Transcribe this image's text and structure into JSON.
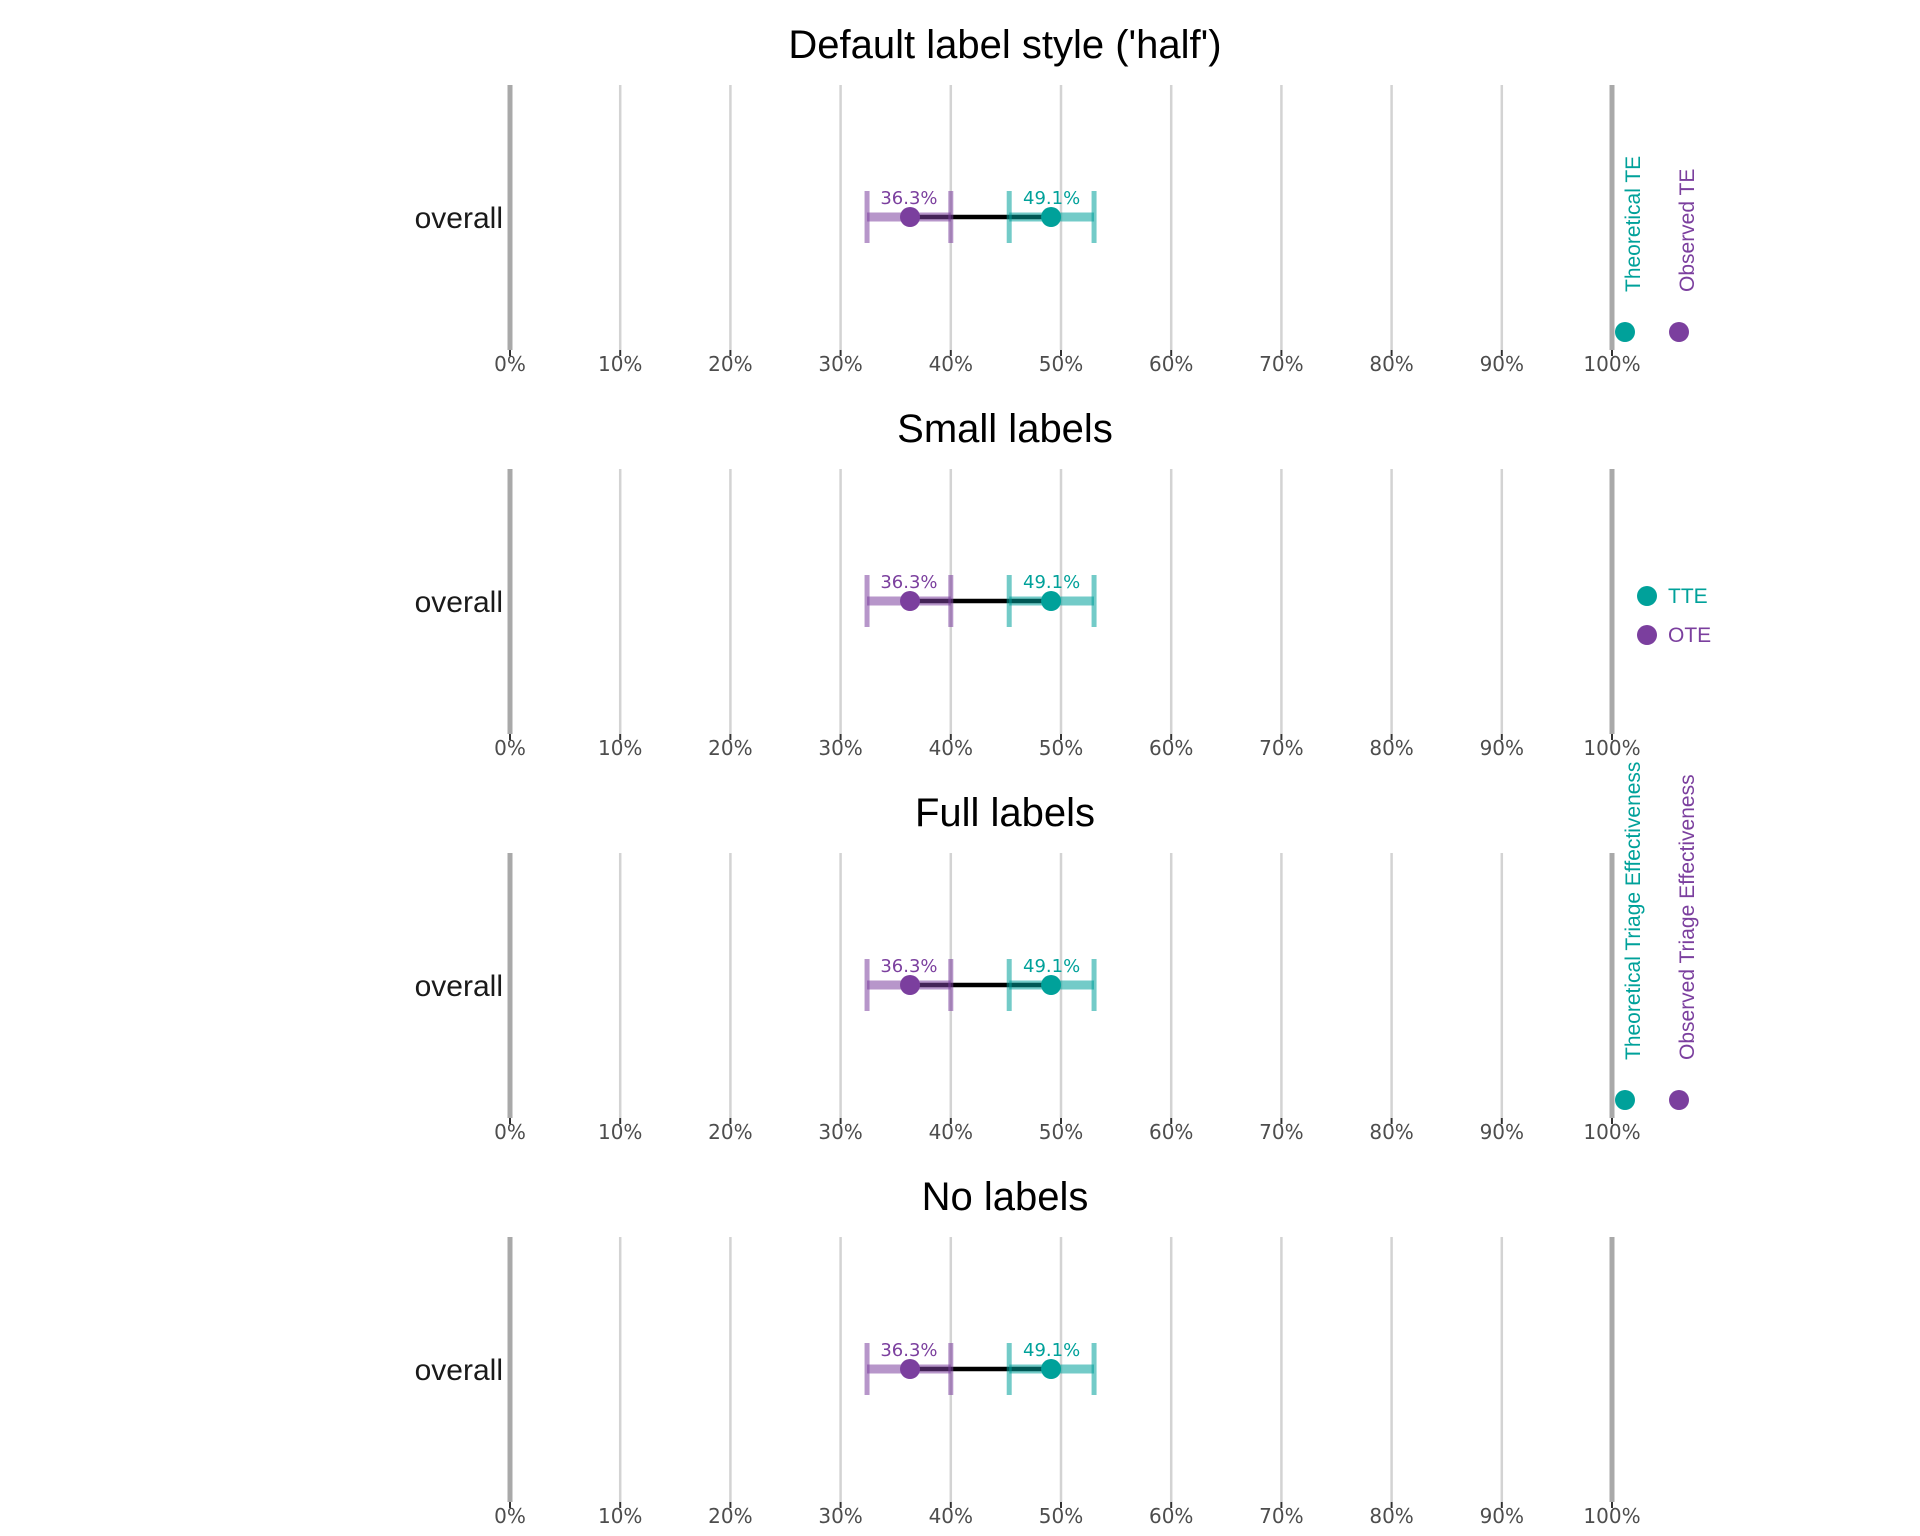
{
  "chart_data": [
    {
      "type": "dot-interval",
      "title": "Default label style ('half')",
      "categories": [
        "overall"
      ],
      "xlim": [
        0,
        1
      ],
      "x_ticks": [
        "0%",
        "10%",
        "20%",
        "30%",
        "40%",
        "50%",
        "60%",
        "70%",
        "80%",
        "90%",
        "100%"
      ],
      "series": [
        {
          "name": "Theoretical TE",
          "color": "#00a19a",
          "estimate": 0.491,
          "ci": [
            0.453,
            0.53
          ],
          "label": "49.1%"
        },
        {
          "name": "Observed TE",
          "color": "#7b3f9e",
          "estimate": 0.363,
          "ci": [
            0.324,
            0.4
          ],
          "label": "36.3%"
        }
      ],
      "legend": {
        "style": "vertical",
        "position": "right",
        "entries": [
          "Theoretical TE",
          "Observed TE"
        ]
      }
    },
    {
      "type": "dot-interval",
      "title": "Small labels",
      "categories": [
        "overall"
      ],
      "xlim": [
        0,
        1
      ],
      "x_ticks": [
        "0%",
        "10%",
        "20%",
        "30%",
        "40%",
        "50%",
        "60%",
        "70%",
        "80%",
        "90%",
        "100%"
      ],
      "series": [
        {
          "name": "TTE",
          "color": "#00a19a",
          "estimate": 0.491,
          "ci": [
            0.453,
            0.53
          ],
          "label": "49.1%"
        },
        {
          "name": "OTE",
          "color": "#7b3f9e",
          "estimate": 0.363,
          "ci": [
            0.324,
            0.4
          ],
          "label": "36.3%"
        }
      ],
      "legend": {
        "style": "horizontal",
        "position": "right",
        "entries": [
          "TTE",
          "OTE"
        ]
      }
    },
    {
      "type": "dot-interval",
      "title": "Full labels",
      "categories": [
        "overall"
      ],
      "xlim": [
        0,
        1
      ],
      "x_ticks": [
        "0%",
        "10%",
        "20%",
        "30%",
        "40%",
        "50%",
        "60%",
        "70%",
        "80%",
        "90%",
        "100%"
      ],
      "series": [
        {
          "name": "Theoretical Triage Effectiveness",
          "color": "#00a19a",
          "estimate": 0.491,
          "ci": [
            0.453,
            0.53
          ],
          "label": "49.1%"
        },
        {
          "name": "Observed Triage Effectiveness",
          "color": "#7b3f9e",
          "estimate": 0.363,
          "ci": [
            0.324,
            0.4
          ],
          "label": "36.3%"
        }
      ],
      "legend": {
        "style": "vertical",
        "position": "right",
        "entries": [
          "Theoretical Triage Effectiveness",
          "Observed Triage Effectiveness"
        ]
      }
    },
    {
      "type": "dot-interval",
      "title": "No labels",
      "categories": [
        "overall"
      ],
      "xlim": [
        0,
        1
      ],
      "x_ticks": [
        "0%",
        "10%",
        "20%",
        "30%",
        "40%",
        "50%",
        "60%",
        "70%",
        "80%",
        "90%",
        "100%"
      ],
      "series": [
        {
          "name": "",
          "color": "#00a19a",
          "estimate": 0.491,
          "ci": [
            0.453,
            0.53
          ],
          "label": "49.1%"
        },
        {
          "name": "",
          "color": "#7b3f9e",
          "estimate": 0.363,
          "ci": [
            0.324,
            0.4
          ],
          "label": "36.3%"
        }
      ],
      "legend": {
        "style": "none",
        "position": "none",
        "entries": []
      }
    }
  ]
}
